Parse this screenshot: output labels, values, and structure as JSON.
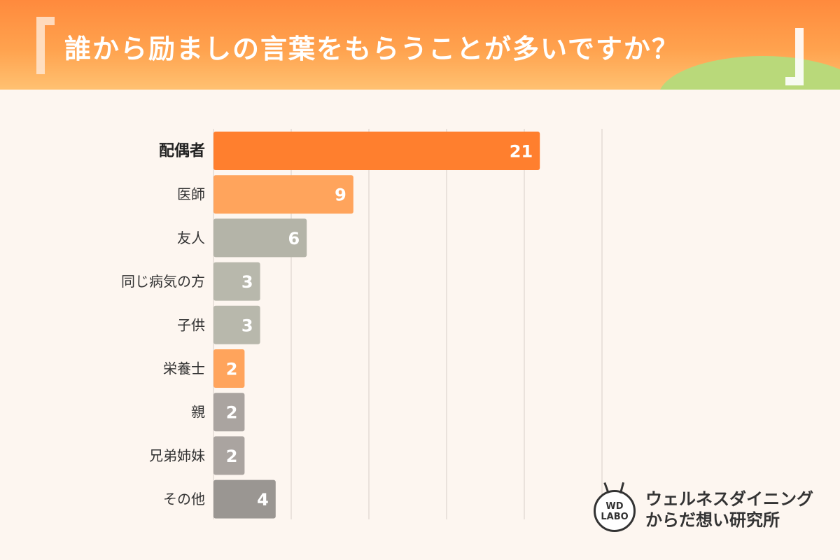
{
  "header": {
    "title": "誰から励ましの言葉をもらうことが多いですか？"
  },
  "logo": {
    "mark_line1": "WD",
    "mark_line2": "LABO",
    "name_line1": "ウェルネスダイニング",
    "name_line2": "からだ想い研究所"
  },
  "chart_data": {
    "type": "bar",
    "orientation": "horizontal",
    "title": "誰から励ましの言葉をもらうことが多いですか？",
    "categories": [
      "配偶者",
      "医師",
      "友人",
      "同じ病気の方",
      "子供",
      "栄養士",
      "親",
      "兄弟姉妹",
      "その他"
    ],
    "values": [
      21,
      9,
      6,
      3,
      3,
      2,
      2,
      2,
      4
    ],
    "colors": [
      "#ff7f2e",
      "#ffa45c",
      "#b4b4a8",
      "#b8b8ac",
      "#b8b8ac",
      "#ffa45c",
      "#aaa4a0",
      "#aaa4a0",
      "#9a9692"
    ],
    "highlight_category": "配偶者",
    "xlim": [
      0,
      25
    ],
    "grid": true
  }
}
